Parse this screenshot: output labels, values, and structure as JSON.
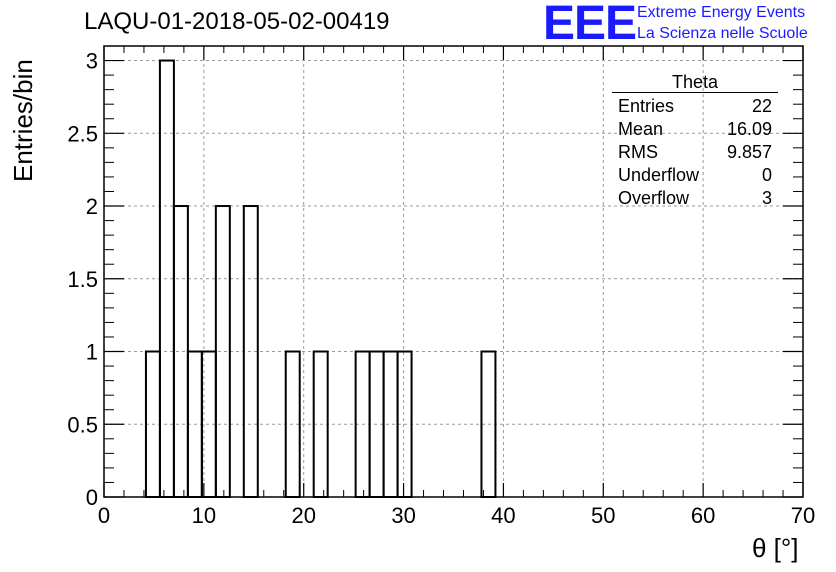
{
  "chart_data": {
    "type": "bar",
    "title": "LAQU-01-2018-05-02-00419",
    "xlabel": "θ [°]",
    "ylabel": "Entries/bin",
    "xlim": [
      0,
      70
    ],
    "ylim": [
      0,
      3.1
    ],
    "grid": true,
    "x_ticks": [
      "0",
      "10",
      "20",
      "30",
      "40",
      "50",
      "60",
      "70"
    ],
    "y_ticks": [
      "0",
      "0.5",
      "1",
      "1.5",
      "2",
      "2.5",
      "3"
    ],
    "bin_width": 1.4,
    "bins": [
      {
        "x": 4.2,
        "y": 1
      },
      {
        "x": 5.6,
        "y": 3
      },
      {
        "x": 7.0,
        "y": 2
      },
      {
        "x": 8.4,
        "y": 1
      },
      {
        "x": 9.8,
        "y": 1
      },
      {
        "x": 11.2,
        "y": 2
      },
      {
        "x": 12.6,
        "y": 0
      },
      {
        "x": 14.0,
        "y": 2
      },
      {
        "x": 15.4,
        "y": 0
      },
      {
        "x": 16.8,
        "y": 0
      },
      {
        "x": 18.2,
        "y": 1
      },
      {
        "x": 19.6,
        "y": 0
      },
      {
        "x": 21.0,
        "y": 1
      },
      {
        "x": 22.4,
        "y": 0
      },
      {
        "x": 23.8,
        "y": 0
      },
      {
        "x": 25.2,
        "y": 1
      },
      {
        "x": 26.6,
        "y": 1
      },
      {
        "x": 28.0,
        "y": 1
      },
      {
        "x": 29.4,
        "y": 1
      },
      {
        "x": 30.8,
        "y": 0
      },
      {
        "x": 32.2,
        "y": 0
      },
      {
        "x": 33.6,
        "y": 0
      },
      {
        "x": 35.0,
        "y": 0
      },
      {
        "x": 36.4,
        "y": 0
      },
      {
        "x": 37.8,
        "y": 1
      },
      {
        "x": 39.2,
        "y": 0
      }
    ],
    "stats": {
      "title": "Theta",
      "rows": [
        {
          "label": "Entries",
          "value": "22"
        },
        {
          "label": "Mean",
          "value": "16.09"
        },
        {
          "label": "RMS",
          "value": "9.857"
        },
        {
          "label": "Underflow",
          "value": "0"
        },
        {
          "label": "Overflow",
          "value": "3"
        }
      ]
    },
    "legend_position": "top-right"
  },
  "logo": {
    "text": "EEE",
    "line1": "Extreme Energy Events",
    "line2": "La Scienza nelle Scuole",
    "color": "#1a1aff"
  }
}
